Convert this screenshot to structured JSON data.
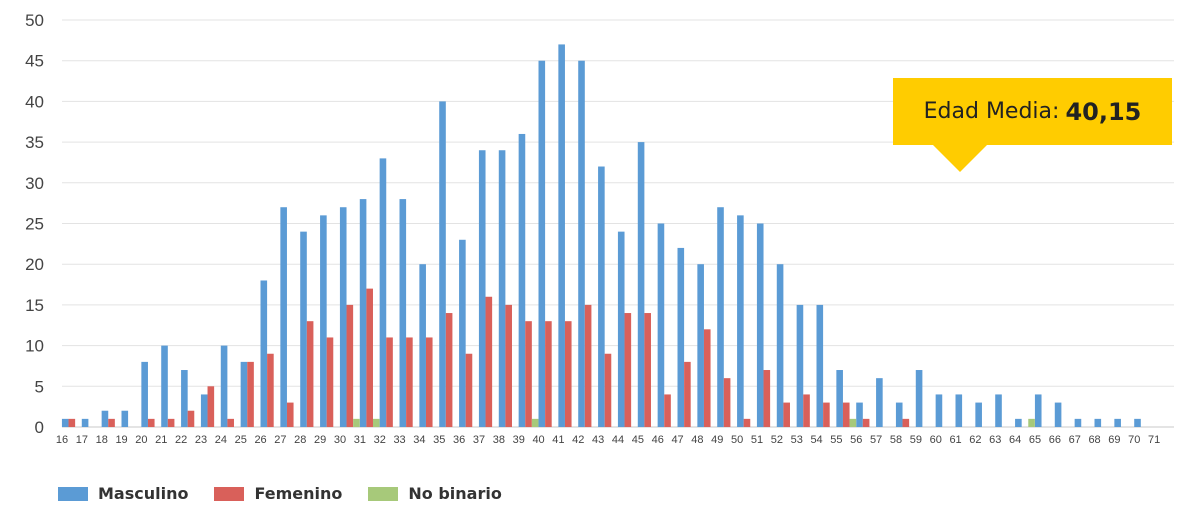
{
  "colors": {
    "masculino": "#5b9bd5",
    "femenino": "#d9605a",
    "no_binario": "#a7c97a",
    "callout": "#ffcc00",
    "grid": "#e3e3e3"
  },
  "callout": {
    "label": "Edad Media:",
    "value": "40,15"
  },
  "legend": {
    "masculino": "Masculino",
    "femenino": "Femenino",
    "no_binario": "No binario"
  },
  "chart_data": {
    "type": "bar",
    "title": "",
    "xlabel": "",
    "ylabel": "",
    "ylim": [
      0,
      50
    ],
    "yticks": [
      0,
      5,
      10,
      15,
      20,
      25,
      30,
      35,
      40,
      45,
      50
    ],
    "grid": true,
    "legend_position": "bottom-left",
    "categories": [
      "16",
      "17",
      "18",
      "19",
      "20",
      "21",
      "22",
      "23",
      "24",
      "25",
      "26",
      "27",
      "28",
      "29",
      "30",
      "31",
      "32",
      "33",
      "34",
      "35",
      "36",
      "37",
      "38",
      "39",
      "40",
      "41",
      "42",
      "43",
      "44",
      "45",
      "46",
      "47",
      "48",
      "49",
      "50",
      "51",
      "52",
      "53",
      "54",
      "55",
      "56",
      "57",
      "58",
      "59",
      "60",
      "61",
      "62",
      "63",
      "64",
      "65",
      "66",
      "67",
      "68",
      "69",
      "70",
      "71"
    ],
    "series": [
      {
        "name": "Masculino",
        "values": [
          1,
          1,
          2,
          2,
          8,
          10,
          7,
          4,
          10,
          8,
          18,
          27,
          24,
          26,
          27,
          28,
          33,
          28,
          20,
          40,
          23,
          34,
          34,
          36,
          45,
          47,
          45,
          32,
          24,
          35,
          25,
          22,
          20,
          27,
          26,
          25,
          20,
          15,
          15,
          7,
          3,
          6,
          3,
          7,
          4,
          4,
          3,
          4,
          1,
          4,
          3,
          1,
          1,
          1,
          1,
          0
        ]
      },
      {
        "name": "Femenino",
        "values": [
          1,
          0,
          1,
          0,
          1,
          1,
          2,
          5,
          1,
          8,
          9,
          3,
          13,
          11,
          15,
          17,
          11,
          11,
          11,
          14,
          9,
          16,
          15,
          13,
          13,
          13,
          15,
          9,
          14,
          14,
          4,
          8,
          12,
          6,
          1,
          7,
          3,
          4,
          3,
          3,
          1,
          0,
          1,
          0,
          0,
          0,
          0,
          0,
          0,
          0,
          0,
          0,
          0,
          0,
          0,
          0
        ]
      },
      {
        "name": "No binario",
        "values": [
          0,
          0,
          0,
          0,
          0,
          0,
          0,
          0,
          0,
          0,
          0,
          0,
          0,
          0,
          1,
          1,
          0,
          0,
          0,
          0,
          0,
          0,
          0,
          1,
          0,
          0,
          0,
          0,
          0,
          0,
          0,
          0,
          0,
          0,
          0,
          0,
          0,
          0,
          0,
          1,
          0,
          0,
          0,
          0,
          0,
          0,
          0,
          0,
          1,
          0,
          0,
          0,
          0,
          0,
          0,
          0
        ]
      }
    ]
  }
}
